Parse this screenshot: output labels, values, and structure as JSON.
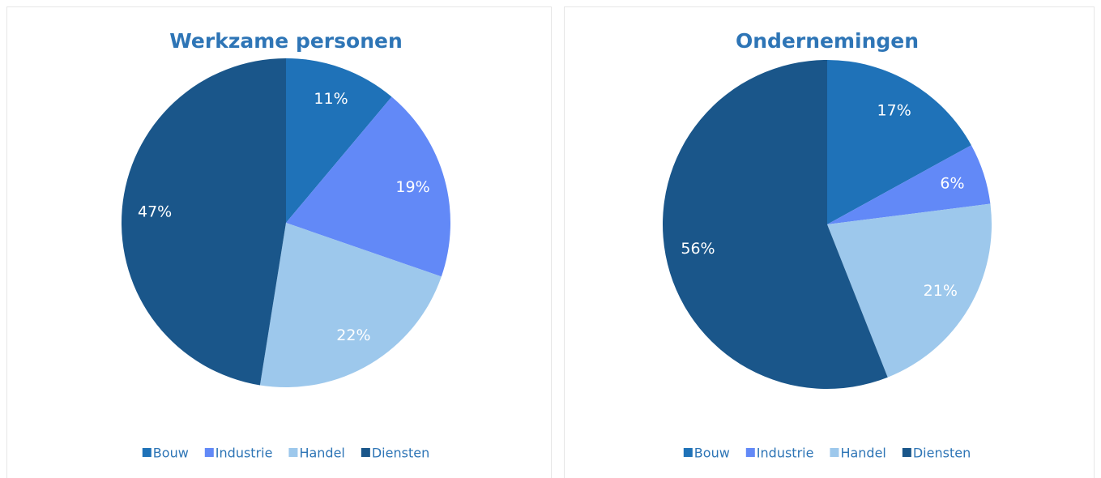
{
  "chart_data": [
    {
      "type": "pie",
      "title": "Werkzame personen",
      "categories": [
        "Bouw",
        "Industrie",
        "Handel",
        "Diensten"
      ],
      "values": [
        11,
        19,
        22,
        47
      ],
      "value_labels": [
        "11%",
        "19%",
        "22%",
        "47%"
      ],
      "colors": [
        "#1f72b8",
        "#6289f7",
        "#9dc8ec",
        "#1a568a"
      ],
      "legend": "bottom"
    },
    {
      "type": "pie",
      "title": "Ondernemingen",
      "categories": [
        "Bouw",
        "Industrie",
        "Handel",
        "Diensten"
      ],
      "values": [
        17,
        6,
        21,
        56
      ],
      "value_labels": [
        "17%",
        "6%",
        "21%",
        "56%"
      ],
      "colors": [
        "#1f72b8",
        "#6289f7",
        "#9dc8ec",
        "#1a568a"
      ],
      "legend": "bottom"
    }
  ]
}
